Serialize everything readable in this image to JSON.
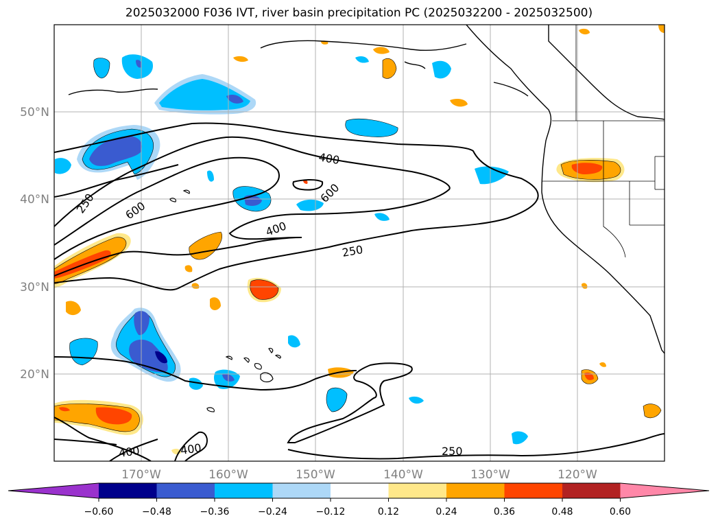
{
  "title": "2025032000 F036 IVT, river basin precipitation PC (2025032200 - 2025032500)",
  "chart_data": {
    "type": "map",
    "projection": "lat-lon",
    "lon_range": [
      -180,
      -110
    ],
    "lat_range": [
      10,
      60
    ],
    "grid": true,
    "lat_ticks": [
      {
        "value": 50,
        "label": "50°N"
      },
      {
        "value": 40,
        "label": "40°N"
      },
      {
        "value": 30,
        "label": "30°N"
      },
      {
        "value": 20,
        "label": "20°N"
      }
    ],
    "lon_ticks": [
      {
        "value": -170,
        "label": "170°W"
      },
      {
        "value": -160,
        "label": "160°W"
      },
      {
        "value": -150,
        "label": "150°W"
      },
      {
        "value": -140,
        "label": "140°W"
      },
      {
        "value": -130,
        "label": "130°W"
      },
      {
        "value": -120,
        "label": "120°W"
      }
    ],
    "ivt_contour_labels": [
      {
        "text": "250",
        "lon": -176,
        "lat": 40
      },
      {
        "text": "600",
        "lon": -170,
        "lat": 38
      },
      {
        "text": "400",
        "lon": -148.5,
        "lat": 44.5
      },
      {
        "text": "600",
        "lon": -146.5,
        "lat": 41
      },
      {
        "text": "400",
        "lon": -151,
        "lat": 37
      },
      {
        "text": "250",
        "lon": -143.5,
        "lat": 34
      },
      {
        "text": "400",
        "lon": -171,
        "lat": 11
      },
      {
        "text": "400",
        "lon": -164.3,
        "lat": 11.3
      },
      {
        "text": "250",
        "lon": -133.5,
        "lat": 11.3
      }
    ],
    "colorbar": {
      "extend": "both",
      "ticks": [
        "−0.60",
        "−0.48",
        "−0.36",
        "−0.24",
        "−0.12",
        "0.12",
        "0.24",
        "0.36",
        "0.48",
        "0.60"
      ],
      "colors": {
        "under": "#9a32cd",
        "neg_0_60": "#00008b",
        "neg_0_48": "#3a5bd0",
        "neg_0_36": "#00bfff",
        "neg_0_24": "#add8f7",
        "neutral": "#ffffff",
        "pos_0_12": "#ffe88a",
        "pos_0_24": "#ffa500",
        "pos_0_36": "#ff4500",
        "pos_0_48": "#b22222",
        "over": "#ff87a8"
      }
    }
  }
}
